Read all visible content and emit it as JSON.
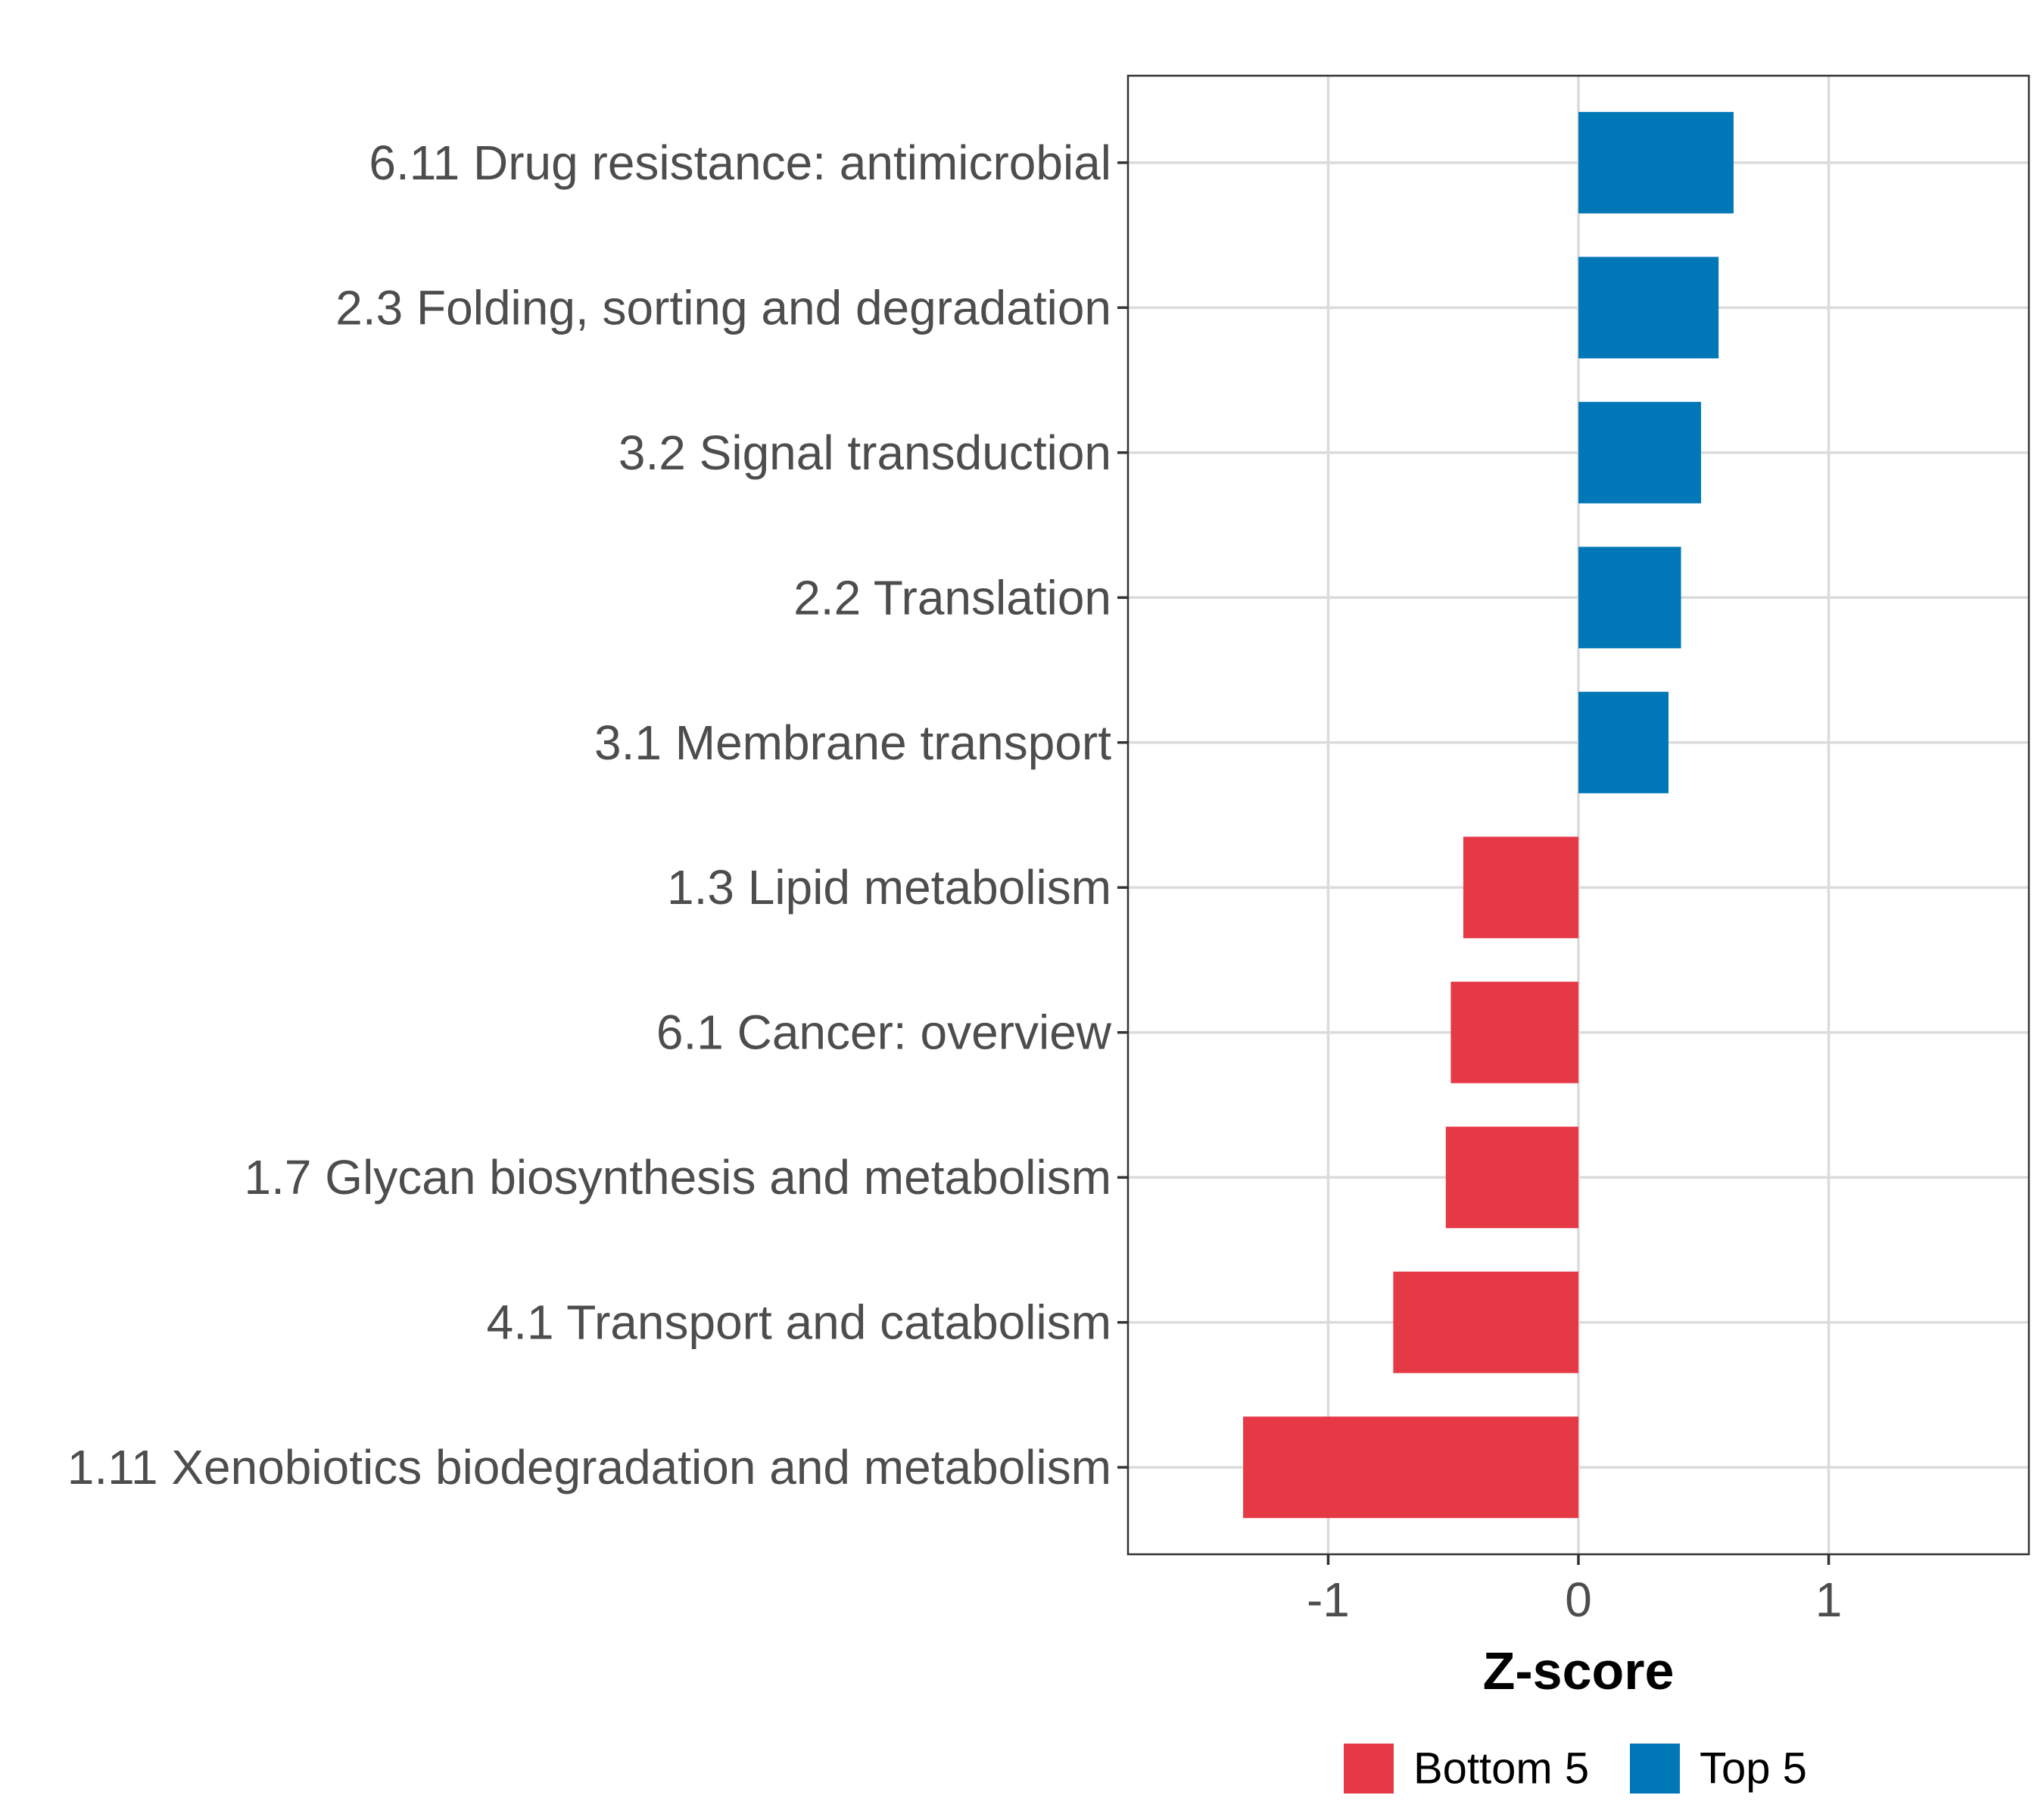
{
  "chart_data": {
    "type": "bar",
    "orientation": "horizontal",
    "title": "",
    "xlabel": "Z-score",
    "ylabel": "",
    "xlim": [
      -1.8,
      1.8
    ],
    "xticks": [
      -1,
      0,
      1
    ],
    "xtick_labels": [
      "-1",
      "0",
      "1"
    ],
    "grid": true,
    "legend_position": "bottom",
    "categories": [
      "6.11 Drug resistance: antimicrobial",
      "2.3 Folding, sorting and degradation",
      "3.2 Signal transduction",
      "2.2 Translation",
      "3.1 Membrane transport",
      "1.3 Lipid metabolism",
      "6.1 Cancer: overview",
      "1.7 Glycan biosynthesis and metabolism",
      "4.1 Transport and catabolism",
      "1.11 Xenobiotics biodegradation and metabolism"
    ],
    "values": [
      0.62,
      0.56,
      0.49,
      0.41,
      0.36,
      -0.46,
      -0.51,
      -0.53,
      -0.74,
      -1.34
    ],
    "groups": [
      "Top 5",
      "Top 5",
      "Top 5",
      "Top 5",
      "Top 5",
      "Bottom 5",
      "Bottom 5",
      "Bottom 5",
      "Bottom 5",
      "Bottom 5"
    ],
    "legend": [
      {
        "label": "Bottom 5",
        "color": "#e63946"
      },
      {
        "label": "Top 5",
        "color": "#0077b6"
      }
    ]
  }
}
